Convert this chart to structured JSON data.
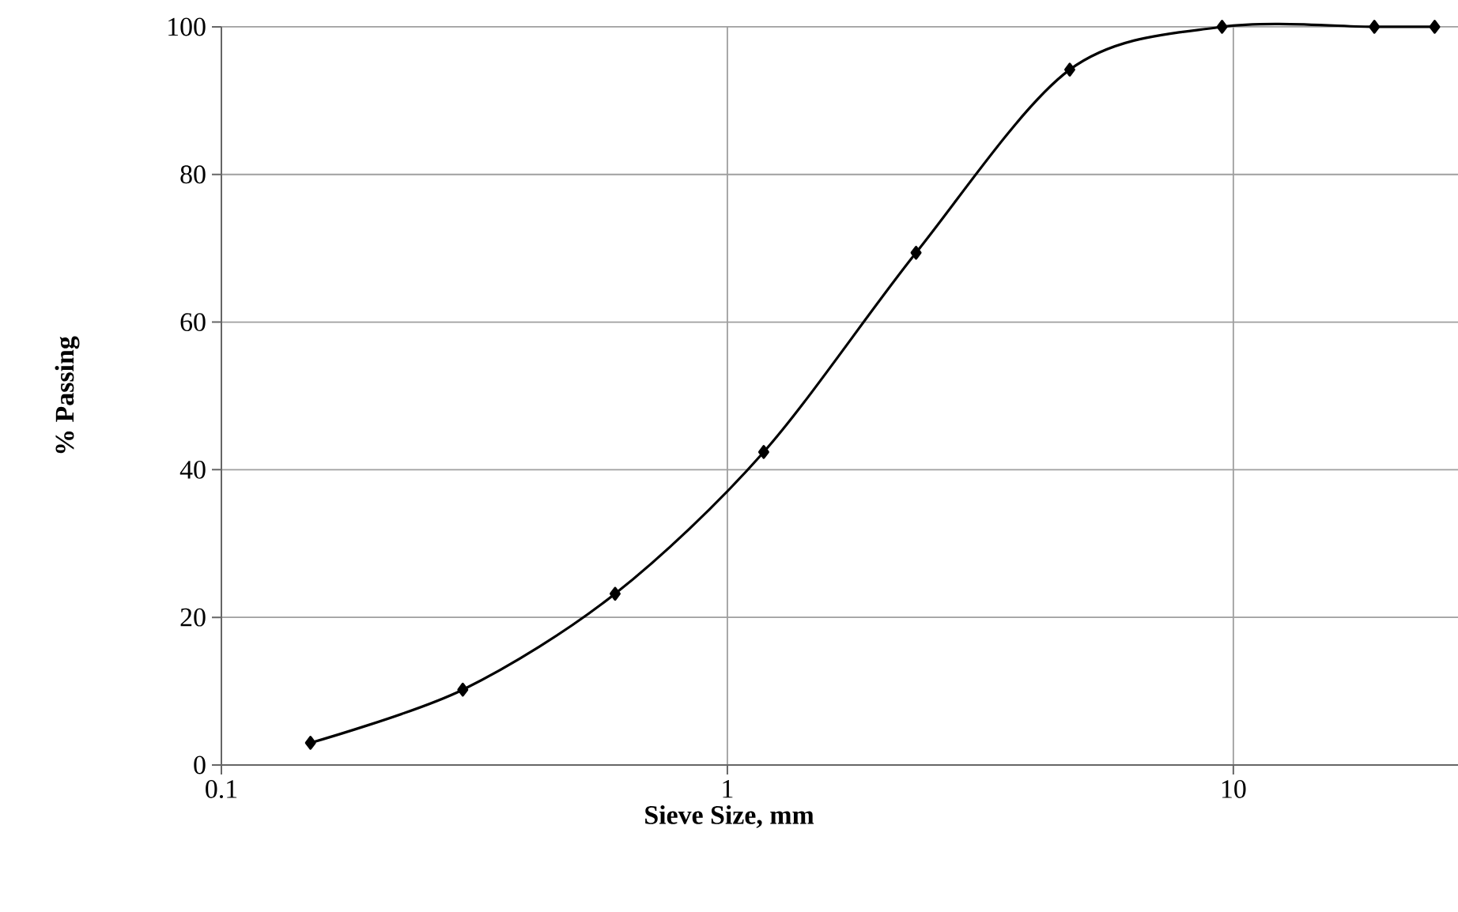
{
  "chart_data": {
    "type": "line",
    "xlabel": "Sieve Size, mm",
    "ylabel": "%  Passing",
    "log": "x",
    "grid": true,
    "marker": "diamond",
    "line_style": "solid",
    "xlim": [
      0.1,
      28
    ],
    "ylim": [
      0,
      100
    ],
    "xticks": [
      0.1,
      1,
      10
    ],
    "yticks": [
      0,
      20,
      40,
      60,
      80,
      100
    ],
    "x": [
      0.15,
      0.3,
      0.6,
      1.18,
      2.36,
      4.75,
      9.5,
      19,
      25
    ],
    "series": [
      {
        "color": "#000000",
        "values": [
          3,
          10.2,
          23.2,
          42.4,
          69.4,
          94.2,
          100,
          100,
          100
        ]
      }
    ]
  }
}
